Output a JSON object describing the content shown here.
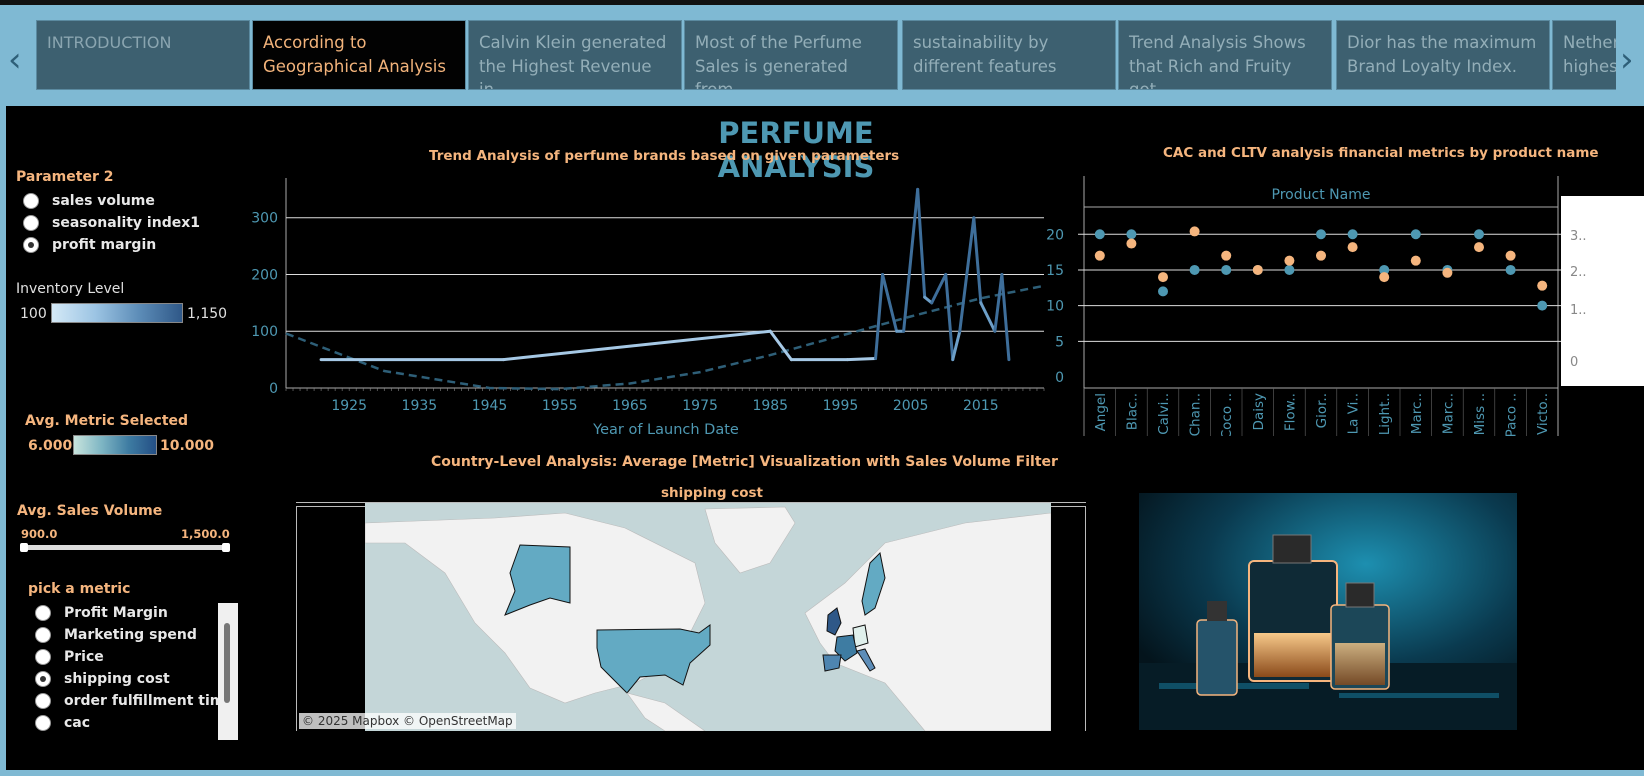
{
  "story_tabs": [
    {
      "label": "INTRODUCTION"
    },
    {
      "label": "According to Geographical Analysis"
    },
    {
      "label": "Calvin Klein generated the Highest Revenue in"
    },
    {
      "label": "Most of the Perfume Sales is generated from"
    },
    {
      "label": "sustainability by different features"
    },
    {
      "label": "Trend Analysis Shows that Rich and Fruity got"
    },
    {
      "label": "Dior has the maximum Brand Loyalty Index."
    },
    {
      "label": "Nether highes"
    }
  ],
  "nav": {
    "prev_icon": "‹",
    "next_icon": "›"
  },
  "dashboard": {
    "title": "PERFUME ANALYSIS"
  },
  "parameter2": {
    "label": "Parameter 2",
    "options": [
      "sales volume",
      "seasonality index1",
      "profit margin"
    ],
    "selected": "profit margin"
  },
  "inventory_legend": {
    "label": "Inventory Level",
    "min": "100",
    "max": "1,150"
  },
  "avg_metric_legend": {
    "label": "Avg. Metric Selected",
    "min": "6.000",
    "max": "10.000"
  },
  "avg_sales_volume": {
    "label": "Avg. Sales Volume",
    "min": "900.0",
    "max": "1,500.0"
  },
  "pick_metric": {
    "label": "pick a metric",
    "options": [
      "Profit Margin",
      "Marketing spend",
      "Price",
      "shipping cost",
      "order fulfillment time",
      "cac"
    ],
    "selected": "shipping cost"
  },
  "trend_chart": {
    "title": "Trend Analysis of perfume brands based on given parameters",
    "xlabel": "Year of Launch Date"
  },
  "cac_chart": {
    "title": "CAC and CLTV analysis financial metrics by product name",
    "header": "Product Name",
    "right_axis_ticks": [
      "3..",
      "2..",
      "1..",
      "0"
    ]
  },
  "map": {
    "title": "Country-Level Analysis: Average [Metric] Visualization with Sales Volume Filter",
    "subtitle": "shipping cost",
    "attribution": "© 2025 Mapbox © OpenStreetMap"
  },
  "colors": {
    "accent": "#f5b57e",
    "teal": "#4e98b2",
    "line": "#a6c9e6",
    "trend": "#2e5f78"
  },
  "chart_data": [
    {
      "type": "line",
      "title": "Trend Analysis of perfume brands based on given parameters",
      "xlabel": "Year of Launch Date",
      "ylabel": "",
      "x_ticks": [
        1925,
        1935,
        1945,
        1955,
        1965,
        1975,
        1985,
        1995,
        2005,
        2015
      ],
      "y_ticks": [
        0,
        100,
        200,
        300
      ],
      "xlim": [
        1916,
        2024
      ],
      "ylim": [
        0,
        370
      ],
      "series": [
        {
          "x": [
            1921,
            1947,
            1985,
            1988,
            1996,
            2000,
            2001,
            2003,
            2004,
            2006,
            2007,
            2008,
            2010,
            2011,
            2012,
            2014,
            2015,
            2017,
            2018,
            2019
          ],
          "y": [
            50,
            50,
            100,
            50,
            50,
            52,
            200,
            100,
            100,
            350,
            160,
            150,
            200,
            50,
            100,
            300,
            150,
            100,
            200,
            50
          ]
        }
      ],
      "trend_line": {
        "x": [
          1916,
          1930,
          1945,
          1955,
          1965,
          1975,
          1985,
          1995,
          2005,
          2015,
          2024
        ],
        "y": [
          96,
          30,
          0,
          -2,
          8,
          28,
          58,
          92,
          126,
          158,
          180
        ]
      }
    },
    {
      "type": "scatter",
      "title": "CAC and CLTV analysis financial metrics by product name",
      "categories": [
        "Angel",
        "Blac..",
        "Calvi..",
        "Chan..",
        "Coco ..",
        "Daisy",
        "Flow..",
        "Gior..",
        "La Vi..",
        "Light..",
        "Marc..",
        "Marc..",
        "Miss ..",
        "Paco ..",
        "Victo.."
      ],
      "y_ticks": [
        0,
        5,
        10,
        15,
        20
      ],
      "ylim": [
        0,
        22
      ],
      "series": [
        {
          "color": "#4e98b2",
          "values": [
            20,
            20,
            12,
            15,
            15,
            15,
            15,
            20,
            20,
            15,
            20,
            15,
            20,
            15,
            10
          ]
        },
        {
          "color": "#f5b57e",
          "values": [
            17,
            18.7,
            14,
            20.4,
            17,
            15,
            16.3,
            17,
            18.2,
            14,
            16.3,
            14.6,
            18.2,
            17,
            12.8
          ]
        }
      ]
    }
  ]
}
